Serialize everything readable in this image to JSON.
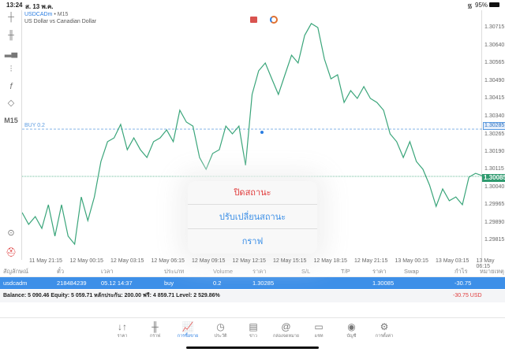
{
  "status": {
    "time": "13:24",
    "date": "ส. 13 พ.ค.",
    "battery": "95%"
  },
  "chart": {
    "symbol": "USDCADm",
    "timeframe_suffix": "• M15",
    "description": "US Dollar vs Canadian Dollar",
    "timeframe": "M15",
    "buy_label": "BUY 0.2",
    "buy_price": "1.30285",
    "current_price": "1.30085",
    "line_color": "#3aa57a",
    "buy_color": "#5b9be0"
  },
  "chart_data": {
    "type": "line",
    "ylim": [
      1.2978,
      1.3075
    ],
    "y_ticks": [
      "1.30715",
      "1.30640",
      "1.30565",
      "1.30490",
      "1.30415",
      "1.30340",
      "1.30265",
      "1.30190",
      "1.30115",
      "1.30040",
      "1.29965",
      "1.29890",
      "1.29815"
    ],
    "x_ticks": [
      "11 May 21:15",
      "12 May 00:15",
      "12 May 03:15",
      "12 May 06:15",
      "12 May 09:15",
      "12 May 12:15",
      "12 May 15:15",
      "12 May 18:15",
      "12 May 21:15",
      "13 May 00:15",
      "13 May 03:15",
      "13 May 06:15"
    ],
    "values": [
      1.29932,
      1.29882,
      1.29915,
      1.29865,
      1.29965,
      1.29832,
      1.29965,
      1.29832,
      1.29798,
      1.29998,
      1.29898,
      1.29998,
      1.30148,
      1.30232,
      1.30248,
      1.30305,
      1.30198,
      1.30248,
      1.30198,
      1.30165,
      1.30232,
      1.30248,
      1.30282,
      1.30232,
      1.30365,
      1.30315,
      1.30298,
      1.30165,
      1.30115,
      1.30182,
      1.30198,
      1.30298,
      1.30265,
      1.30298,
      1.30132,
      1.30432,
      1.30532,
      1.30565,
      1.30498,
      1.30432,
      1.30515,
      1.30598,
      1.30565,
      1.30682,
      1.30732,
      1.30715,
      1.30582,
      1.30498,
      1.30515,
      1.30398,
      1.30448,
      1.30415,
      1.30465,
      1.30415,
      1.30398,
      1.30365,
      1.30265,
      1.30232,
      1.30165,
      1.30232,
      1.30148,
      1.30115,
      1.30048,
      1.29958,
      1.30032,
      1.29982,
      1.29998,
      1.29965,
      1.30082,
      1.30098,
      1.30088
    ],
    "levels": [
      {
        "name": "BUY 0.2",
        "value": 1.30285
      },
      {
        "name": "current",
        "value": 1.30085
      }
    ]
  },
  "popup": {
    "close": "ปิดสถานะ",
    "modify": "ปรับเปลี่ยนสถานะ",
    "chart": "กราฟ"
  },
  "table": {
    "headers": [
      "สัญลักษณ์",
      "ตั๋ว",
      "เวลา",
      "ประเภท",
      "Volume",
      "ราคา",
      "S/L",
      "T/P",
      "ราคา",
      "Swap",
      "กำไร",
      "หมายเหตุ"
    ],
    "row": [
      "usdcadm",
      "218484239",
      "05.12 14:37",
      "buy",
      "0.2",
      "1.30285",
      "",
      "",
      "1.30085",
      "",
      "-30.75",
      ""
    ],
    "balance": "Balance: 5 090.46 Equity: 5 059.71 หลักประกัน: 200.00 ฟรี: 4 859.71 Level: 2 529.86%",
    "total": "-30.75  USD"
  },
  "tabs": [
    {
      "label": "ราคา",
      "icon": "↓↑"
    },
    {
      "label": "กราฟ",
      "icon": "╫"
    },
    {
      "label": "การซื้อขาย",
      "icon": "📈"
    },
    {
      "label": "ประวัติ",
      "icon": "◷"
    },
    {
      "label": "ข่าว",
      "icon": "▤"
    },
    {
      "label": "กล่องจดหมาย",
      "icon": "@"
    },
    {
      "label": "แชท",
      "icon": "▭"
    },
    {
      "label": "บัญชี",
      "icon": "◉"
    },
    {
      "label": "การตั้งค่า",
      "icon": "⚙"
    }
  ]
}
